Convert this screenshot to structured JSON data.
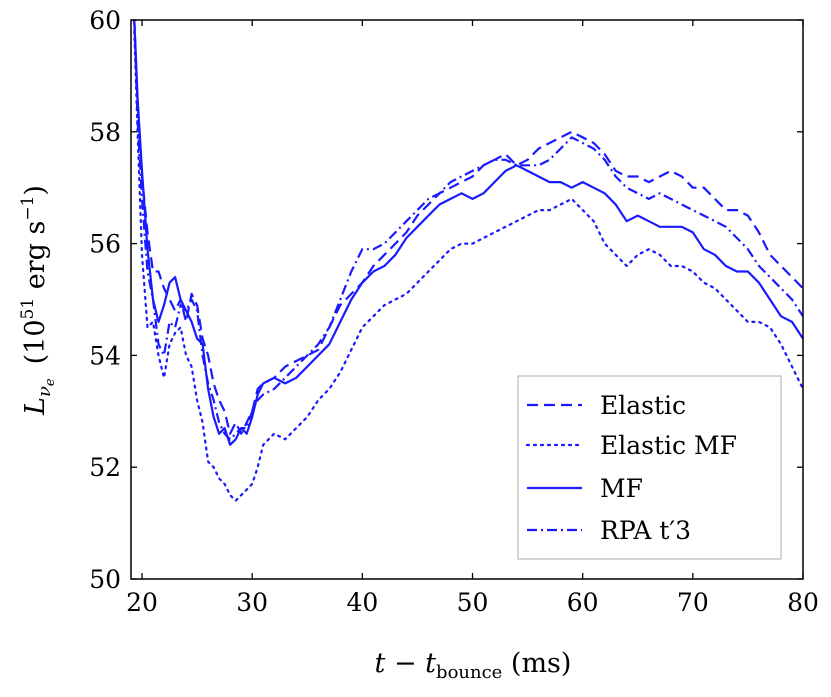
{
  "chart_data": {
    "type": "line",
    "xlabel": {
      "base": "t − t",
      "sub": "bounce",
      "tail": " (ms)"
    },
    "ylabel": {
      "base": "L",
      "sub": "ν",
      "subsub": "e",
      "unit_pre": "(10",
      "unit_exp": "51",
      "unit_mid": " erg s",
      "unit_exp2": "−1",
      "unit_post": ")"
    },
    "xlim": [
      19,
      80
    ],
    "ylim": [
      50,
      60
    ],
    "xticks": [
      20,
      30,
      40,
      50,
      60,
      70,
      80
    ],
    "yticks": [
      50,
      52,
      54,
      56,
      58,
      60
    ],
    "legend_position": "bottom-right",
    "line_color": "#1a1aff",
    "series": [
      {
        "name": "Elastic",
        "style": "dashed",
        "x": [
          19.3,
          19.6,
          20.0,
          20.5,
          21.0,
          21.5,
          22.0,
          22.5,
          23.0,
          23.5,
          24.0,
          24.5,
          25.0,
          25.5,
          26.0,
          26.5,
          27.0,
          27.5,
          28.0,
          28.5,
          29.0,
          29.5,
          30.0,
          30.5,
          31.0,
          32.0,
          33.0,
          34.0,
          35.0,
          36.0,
          37.0,
          38.0,
          39.0,
          40.0,
          41.0,
          42.0,
          43.0,
          44.0,
          45.0,
          46.0,
          47.0,
          48.0,
          49.0,
          50.0,
          51.0,
          52.0,
          53.0,
          54.0,
          55.0,
          56.0,
          57.0,
          58.0,
          59.0,
          60.0,
          61.0,
          62.0,
          63.0,
          64.0,
          65.0,
          66.0,
          67.0,
          68.0,
          69.0,
          70.0,
          71.0,
          72.0,
          73.0,
          74.0,
          75.0,
          76.0,
          77.0,
          78.0,
          79.0,
          80.0
        ],
        "y": [
          60.0,
          58.5,
          57.2,
          56.2,
          55.5,
          55.5,
          55.2,
          55.0,
          54.8,
          55.0,
          54.6,
          55.1,
          54.9,
          54.3,
          54.0,
          53.5,
          53.2,
          53.0,
          52.6,
          52.8,
          52.6,
          52.8,
          53.0,
          53.4,
          53.5,
          53.6,
          53.8,
          53.9,
          54.0,
          54.1,
          54.5,
          54.9,
          55.1,
          55.3,
          55.6,
          55.8,
          56.0,
          56.2,
          56.5,
          56.7,
          56.9,
          57.0,
          57.1,
          57.2,
          57.4,
          57.5,
          57.6,
          57.4,
          57.5,
          57.7,
          57.8,
          57.9,
          58.0,
          57.9,
          57.8,
          57.6,
          57.3,
          57.2,
          57.2,
          57.1,
          57.2,
          57.3,
          57.2,
          57.0,
          57.0,
          56.8,
          56.6,
          56.6,
          56.5,
          56.2,
          55.8,
          55.6,
          55.4,
          55.2
        ]
      },
      {
        "name": "Elastic MF",
        "style": "dotted",
        "x": [
          19.3,
          19.6,
          20.0,
          20.5,
          21.0,
          21.5,
          22.0,
          22.5,
          23.0,
          23.5,
          24.0,
          24.5,
          25.0,
          25.5,
          26.0,
          26.5,
          27.0,
          27.5,
          28.0,
          28.5,
          29.0,
          29.5,
          30.0,
          30.5,
          31.0,
          32.0,
          33.0,
          34.0,
          35.0,
          36.0,
          37.0,
          38.0,
          39.0,
          40.0,
          41.0,
          42.0,
          43.0,
          44.0,
          45.0,
          46.0,
          47.0,
          48.0,
          49.0,
          50.0,
          51.0,
          52.0,
          53.0,
          54.0,
          55.0,
          56.0,
          57.0,
          58.0,
          59.0,
          60.0,
          61.0,
          62.0,
          63.0,
          64.0,
          65.0,
          66.0,
          67.0,
          68.0,
          69.0,
          70.0,
          71.0,
          72.0,
          73.0,
          74.0,
          75.0,
          76.0,
          77.0,
          78.0,
          79.0,
          80.0
        ],
        "y": [
          59.8,
          58.0,
          55.8,
          54.5,
          54.6,
          54.0,
          53.6,
          54.2,
          54.4,
          54.5,
          54.0,
          53.8,
          53.2,
          52.8,
          52.1,
          52.0,
          51.8,
          51.7,
          51.5,
          51.4,
          51.5,
          51.6,
          51.7,
          52.0,
          52.4,
          52.6,
          52.5,
          52.7,
          52.9,
          53.2,
          53.4,
          53.7,
          54.1,
          54.5,
          54.7,
          54.9,
          55.0,
          55.1,
          55.3,
          55.5,
          55.7,
          55.9,
          56.0,
          56.0,
          56.1,
          56.2,
          56.3,
          56.4,
          56.5,
          56.6,
          56.6,
          56.7,
          56.8,
          56.6,
          56.4,
          56.0,
          55.8,
          55.6,
          55.8,
          55.9,
          55.8,
          55.6,
          55.6,
          55.5,
          55.3,
          55.2,
          55.0,
          54.8,
          54.6,
          54.6,
          54.5,
          54.2,
          53.8,
          53.4
        ]
      },
      {
        "name": "MF",
        "style": "solid",
        "x": [
          19.3,
          19.6,
          20.0,
          20.5,
          21.0,
          21.5,
          22.0,
          22.5,
          23.0,
          23.5,
          24.0,
          24.5,
          25.0,
          25.5,
          26.0,
          26.5,
          27.0,
          27.5,
          28.0,
          28.5,
          29.0,
          29.5,
          30.0,
          30.5,
          31.0,
          32.0,
          33.0,
          34.0,
          35.0,
          36.0,
          37.0,
          38.0,
          39.0,
          40.0,
          41.0,
          42.0,
          43.0,
          44.0,
          45.0,
          46.0,
          47.0,
          48.0,
          49.0,
          50.0,
          51.0,
          52.0,
          53.0,
          54.0,
          55.0,
          56.0,
          57.0,
          58.0,
          59.0,
          60.0,
          61.0,
          62.0,
          63.0,
          64.0,
          65.0,
          66.0,
          67.0,
          68.0,
          69.0,
          70.0,
          71.0,
          72.0,
          73.0,
          74.0,
          75.0,
          76.0,
          77.0,
          78.0,
          79.0,
          80.0
        ],
        "y": [
          60.0,
          58.6,
          57.3,
          55.9,
          55.0,
          54.6,
          54.9,
          55.3,
          55.4,
          55.0,
          54.8,
          54.6,
          54.3,
          54.2,
          53.4,
          52.9,
          52.6,
          52.7,
          52.4,
          52.5,
          52.7,
          52.6,
          52.9,
          53.3,
          53.5,
          53.6,
          53.5,
          53.6,
          53.8,
          54.0,
          54.2,
          54.6,
          55.0,
          55.3,
          55.5,
          55.6,
          55.8,
          56.1,
          56.3,
          56.5,
          56.7,
          56.8,
          56.9,
          56.8,
          56.9,
          57.1,
          57.3,
          57.4,
          57.3,
          57.2,
          57.1,
          57.1,
          57.0,
          57.1,
          57.0,
          56.9,
          56.7,
          56.4,
          56.5,
          56.4,
          56.3,
          56.3,
          56.3,
          56.2,
          55.9,
          55.8,
          55.6,
          55.5,
          55.5,
          55.3,
          55.0,
          54.7,
          54.6,
          54.3
        ]
      },
      {
        "name": "RPA t′3",
        "style": "dashdot",
        "x": [
          19.3,
          19.6,
          20.0,
          20.5,
          21.0,
          21.5,
          22.0,
          22.5,
          23.0,
          23.5,
          24.0,
          24.5,
          25.0,
          25.5,
          26.0,
          26.5,
          27.0,
          27.5,
          28.0,
          28.5,
          29.0,
          29.5,
          30.0,
          30.5,
          31.0,
          32.0,
          33.0,
          34.0,
          35.0,
          36.0,
          37.0,
          38.0,
          39.0,
          40.0,
          41.0,
          42.0,
          43.0,
          44.0,
          45.0,
          46.0,
          47.0,
          48.0,
          49.0,
          50.0,
          51.0,
          52.0,
          53.0,
          54.0,
          55.0,
          56.0,
          57.0,
          58.0,
          59.0,
          60.0,
          61.0,
          62.0,
          63.0,
          64.0,
          65.0,
          66.0,
          67.0,
          68.0,
          69.0,
          70.0,
          71.0,
          72.0,
          73.0,
          74.0,
          75.0,
          76.0,
          77.0,
          78.0,
          79.0,
          80.0
        ],
        "y": [
          60.0,
          58.2,
          56.8,
          55.5,
          55.0,
          54.2,
          54.0,
          54.6,
          54.5,
          54.9,
          54.8,
          55.0,
          54.8,
          54.0,
          53.5,
          53.2,
          52.8,
          52.6,
          52.5,
          52.6,
          52.7,
          52.7,
          53.0,
          53.2,
          53.3,
          53.4,
          53.6,
          53.8,
          54.0,
          54.2,
          54.5,
          55.0,
          55.5,
          55.9,
          55.9,
          56.0,
          56.2,
          56.4,
          56.6,
          56.8,
          56.9,
          57.1,
          57.2,
          57.3,
          57.4,
          57.5,
          57.5,
          57.4,
          57.4,
          57.4,
          57.5,
          57.7,
          57.9,
          57.8,
          57.7,
          57.5,
          57.2,
          57.0,
          56.9,
          56.8,
          56.9,
          56.8,
          56.7,
          56.6,
          56.5,
          56.4,
          56.3,
          56.1,
          55.9,
          55.6,
          55.4,
          55.2,
          55.0,
          54.7
        ]
      }
    ]
  }
}
